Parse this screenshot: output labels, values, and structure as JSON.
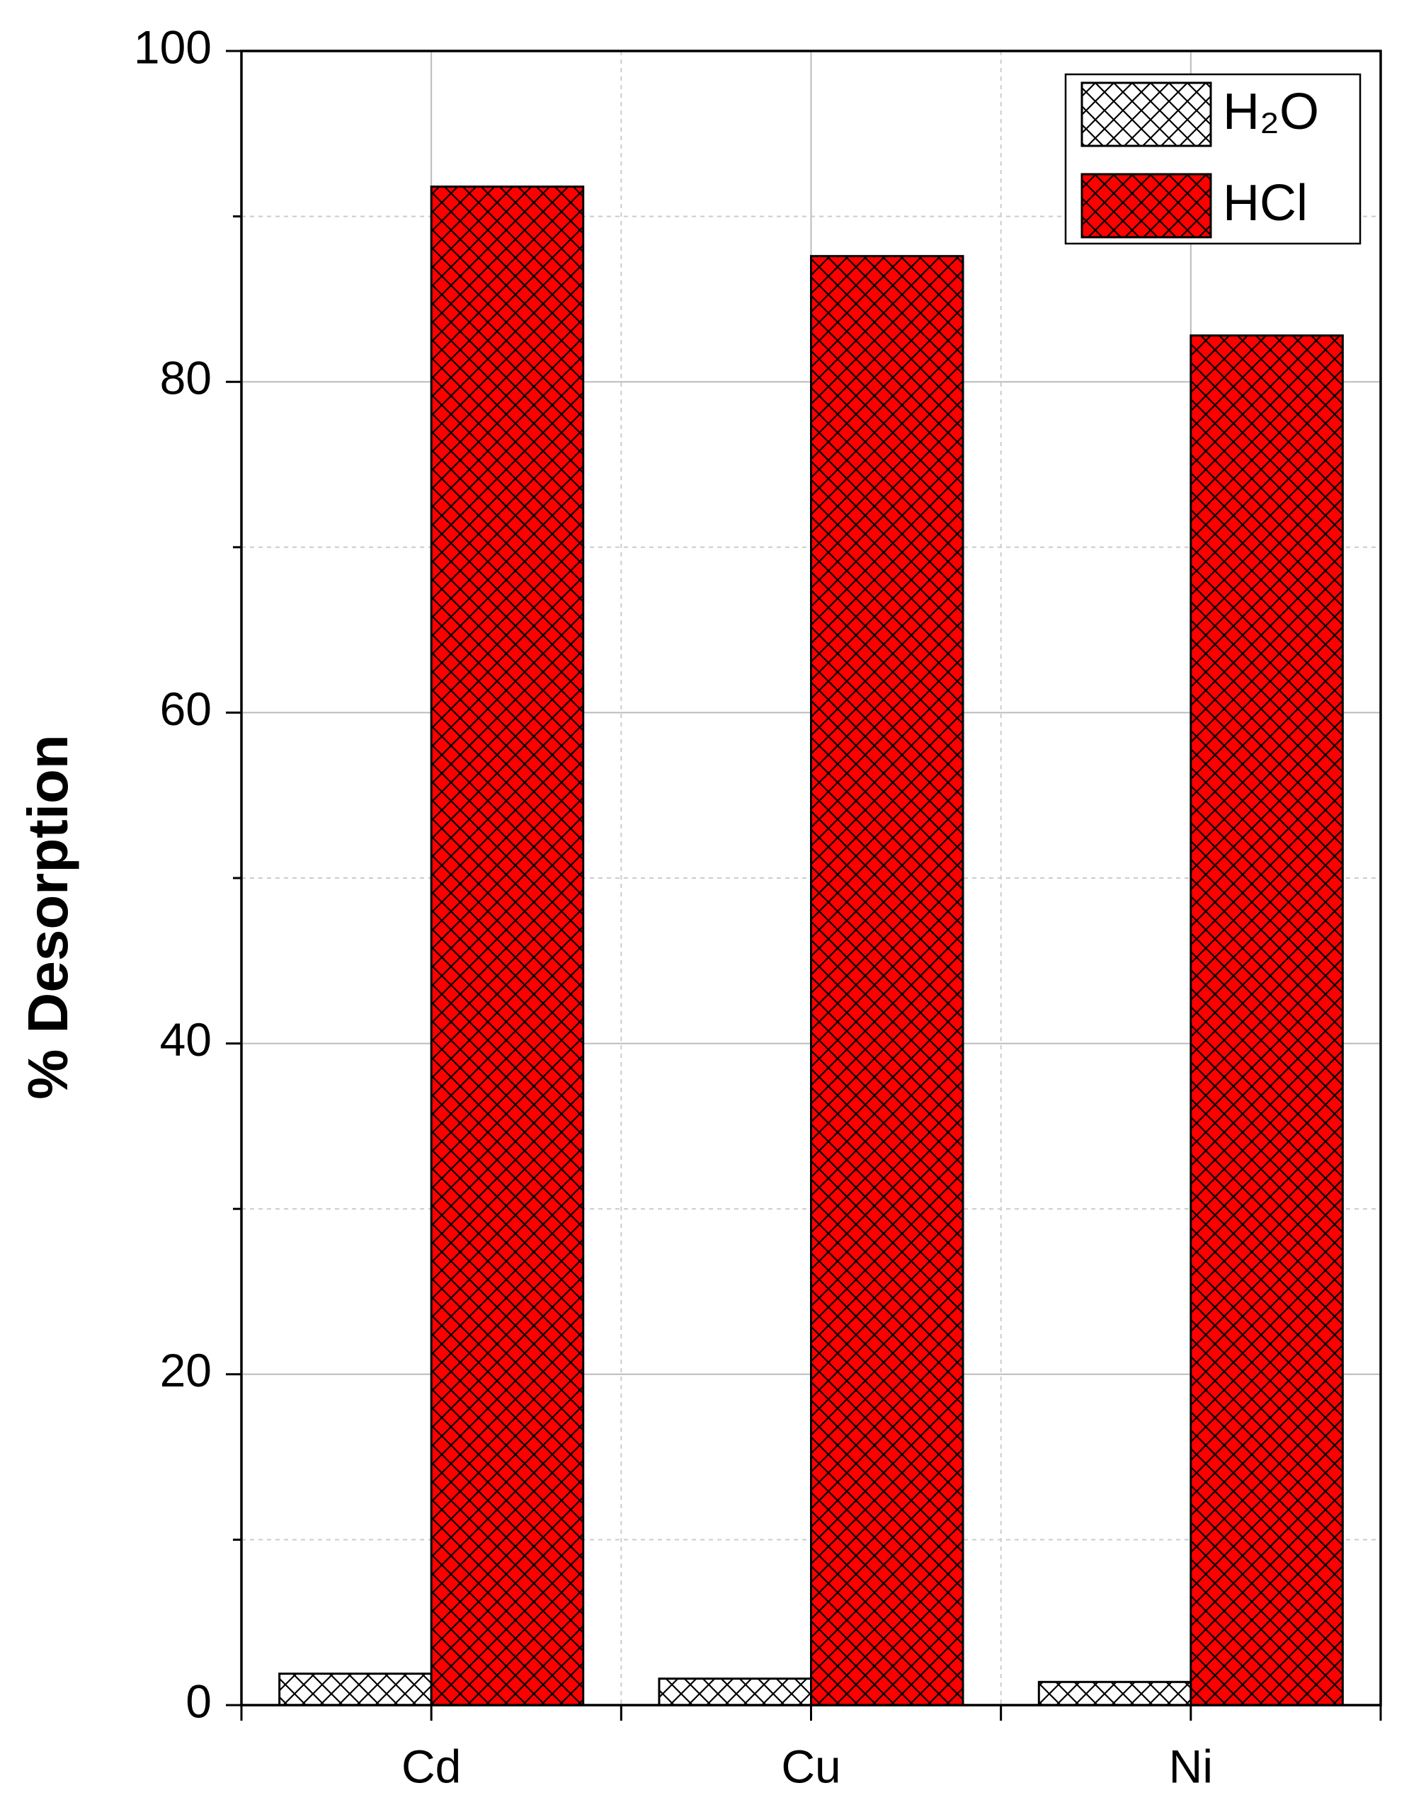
{
  "chart_data": {
    "type": "bar",
    "y_label": "% Desorption",
    "categories": [
      "Cd",
      "Cu",
      "Ni"
    ],
    "series": [
      {
        "name": "H₂O",
        "color": "#ffffff",
        "values": [
          1.9,
          1.6,
          1.4
        ]
      },
      {
        "name": "HCl",
        "color": "#ff0000",
        "values": [
          91.8,
          87.6,
          82.8
        ]
      }
    ],
    "ylim": [
      0,
      100
    ],
    "yticks": [
      0,
      20,
      40,
      60,
      80,
      100
    ],
    "yminorticks": [
      10,
      30,
      50,
      70,
      90
    ],
    "grid": true,
    "legend": "top-right",
    "pattern": "crosshatch"
  }
}
